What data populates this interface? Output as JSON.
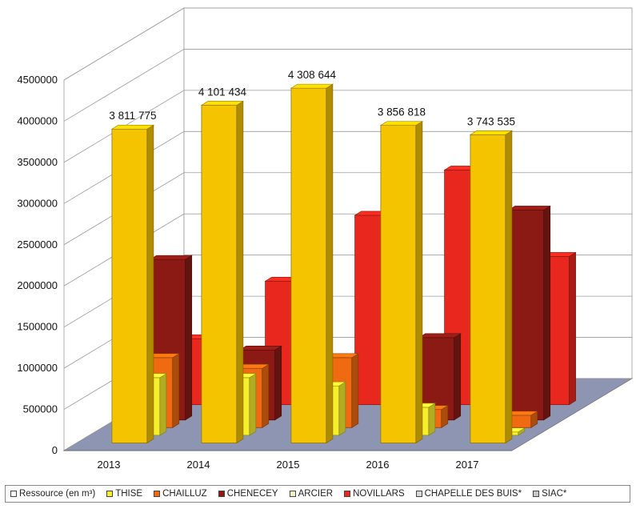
{
  "chart_data": {
    "type": "bar",
    "categories": [
      "2013",
      "2014",
      "2015",
      "2016",
      "2017"
    ],
    "ylim": [
      0,
      4500000
    ],
    "yticks": [
      "0",
      "500000",
      "1000000",
      "1500000",
      "2000000",
      "2500000",
      "3000000",
      "3500000",
      "4000000",
      "4500000"
    ],
    "grid": true,
    "legend_position": "bottom",
    "ressource_labels": [
      "3 811 775",
      "4 101 434",
      "4 308 644",
      "3 856 818",
      "3 743 535"
    ],
    "series": [
      {
        "name": "Ressource (en m³)",
        "values": [
          3811775,
          4101434,
          4308644,
          3856818,
          3743535
        ],
        "color": "#f5c400",
        "swatch": "#ffffff"
      },
      {
        "name": "THISE",
        "values": [
          700000,
          700000,
          600000,
          340000,
          40000
        ],
        "color": "#f6ef2e",
        "swatch": "#f6ef2e"
      },
      {
        "name": "CHAILLUZ",
        "values": [
          850000,
          720000,
          850000,
          220000,
          150000
        ],
        "color": "#ef6a10",
        "swatch": "#ef6a10"
      },
      {
        "name": "CHENECEY",
        "values": [
          1950000,
          850000,
          0,
          1000000,
          2550000
        ],
        "color": "#8b1a14",
        "swatch": "#8b1a14"
      },
      {
        "name": "ARCIER",
        "values": [
          0,
          0,
          0,
          0,
          0
        ],
        "color": "#f2f2c8",
        "swatch": "#f2f2c8"
      },
      {
        "name": "NOVILLARS",
        "values": [
          800000,
          1500000,
          2300000,
          2850000,
          1800000
        ],
        "color": "#e8281e",
        "swatch": "#e8281e"
      },
      {
        "name": "CHAPELLE DES BUIS*",
        "values": [
          0,
          0,
          0,
          0,
          0
        ],
        "color": "#d8d8d8",
        "swatch": "#d8d8d8"
      },
      {
        "name": "SIAC*",
        "values": [
          0,
          0,
          0,
          0,
          0
        ],
        "color": "#c8c8c8",
        "swatch": "#c8c8c8"
      }
    ]
  }
}
